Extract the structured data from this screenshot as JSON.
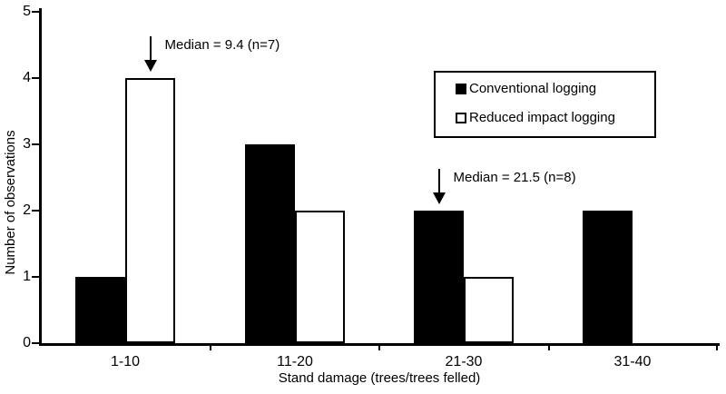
{
  "figure": {
    "background": "#ffffff",
    "ink": "#000000"
  },
  "chart_data": {
    "type": "bar",
    "title": "",
    "xlabel": "Stand damage (trees/trees felled)",
    "ylabel": "Number of observations",
    "categories": [
      "1-10",
      "11-20",
      "21-30",
      "31-40"
    ],
    "series": [
      {
        "name": "Conventional logging",
        "fill": "solid",
        "color": "#000000",
        "values": [
          1,
          3,
          2,
          2
        ]
      },
      {
        "name": "Reduced impact logging",
        "fill": "outline",
        "color": "#ffffff",
        "values": [
          4,
          2,
          1,
          0
        ]
      }
    ],
    "ylim": [
      0,
      5
    ],
    "yticks": [
      "0",
      "1",
      "2",
      "3",
      "4",
      "5"
    ],
    "grid": false,
    "legend_position": "upper-right",
    "annotations": [
      {
        "text": "Median = 9.4 (n=7)",
        "category": "1-10",
        "series": "Reduced impact logging",
        "arrow": "down"
      },
      {
        "text": "Median = 21.5 (n=8)",
        "category": "21-30",
        "series": "Conventional logging",
        "arrow": "down"
      }
    ]
  }
}
